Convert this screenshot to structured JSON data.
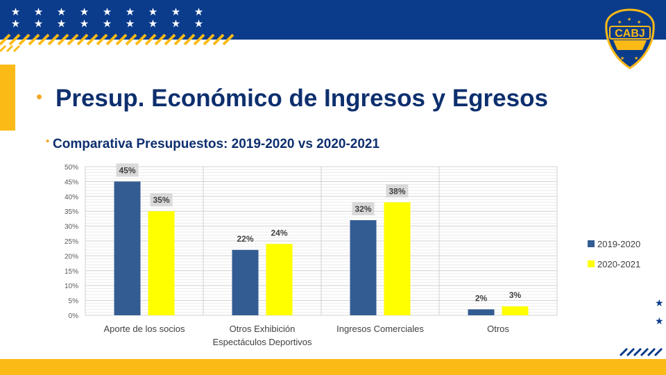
{
  "slide": {
    "title": "Presup. Económico de Ingresos y Egresos",
    "subtitle": "Comparativa Presupuestos: 2019-2020 vs 2020-2021",
    "logo_text": "CABJ",
    "colors": {
      "brand_blue": "#0b3c8c",
      "brand_gold": "#fbba16",
      "title_blue": "#0d2f6e"
    }
  },
  "chart_data": {
    "type": "bar",
    "title": "",
    "xlabel": "",
    "ylabel": "",
    "ylim": [
      0,
      50
    ],
    "yticks": [
      "0%",
      "5%",
      "10%",
      "15%",
      "20%",
      "25%",
      "30%",
      "35%",
      "40%",
      "45%",
      "50%"
    ],
    "categories": [
      [
        "Aporte de los socios"
      ],
      [
        "Otros Exhibición",
        "Espectáculos Deportivos"
      ],
      [
        "Ingresos Comerciales"
      ],
      [
        "Otros"
      ]
    ],
    "series": [
      {
        "name": "2019-2020",
        "color": "#335c92",
        "values": [
          45,
          22,
          32,
          2
        ],
        "labels": [
          "45%",
          "22%",
          "32%",
          "2%"
        ]
      },
      {
        "name": "2020-2021",
        "color": "#ffff00",
        "values": [
          35,
          24,
          38,
          3
        ],
        "labels": [
          "35%",
          "24%",
          "38%",
          "3%"
        ]
      }
    ],
    "grid": true,
    "legend": "right"
  }
}
